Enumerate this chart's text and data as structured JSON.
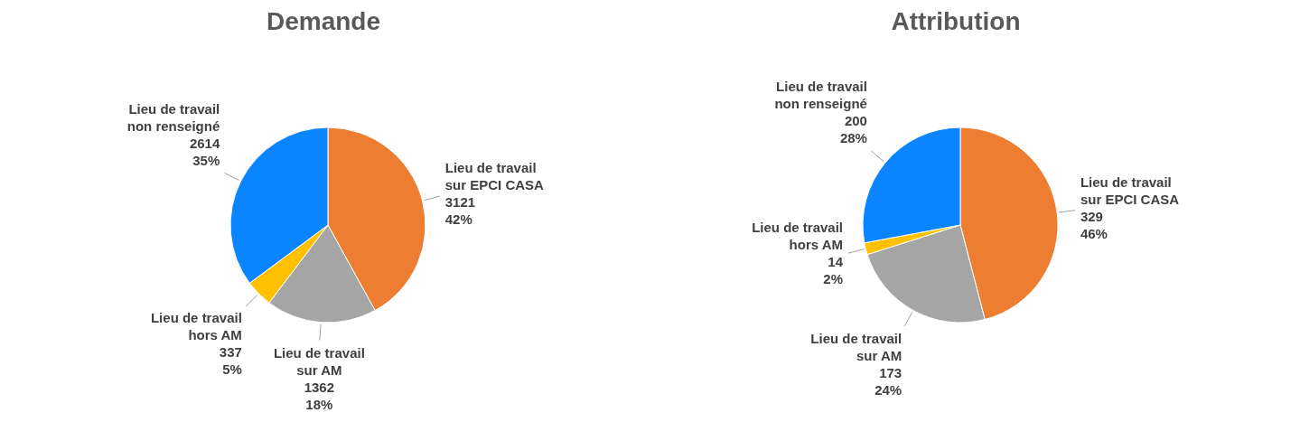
{
  "chart_data": [
    {
      "type": "pie",
      "title": "Demande",
      "categories": [
        "Lieu de travail sur EPCI CASA",
        "Lieu de travail sur AM",
        "Lieu de travail hors AM",
        "Lieu de travail non renseigné"
      ],
      "values": [
        3121,
        1362,
        337,
        2614
      ],
      "value_labels": [
        "3121\n42%",
        "1362\n18%",
        "337\n5%",
        "2614\n35%"
      ],
      "colors": [
        "#ed7d31",
        "#a5a5a5",
        "#ffc000",
        "#0a84ff"
      ]
    },
    {
      "type": "pie",
      "title": "Attribution",
      "categories": [
        "Lieu de travail sur EPCI CASA",
        "Lieu de travail sur AM",
        "Lieu de travail hors AM",
        "Lieu de travail non renseigné"
      ],
      "values": [
        329,
        173,
        14,
        200
      ],
      "value_labels": [
        "329\n46%",
        "173\n24%",
        "14\n2%",
        "200\n28%"
      ],
      "colors": [
        "#ed7d31",
        "#a5a5a5",
        "#ffc000",
        "#0a84ff"
      ]
    }
  ]
}
